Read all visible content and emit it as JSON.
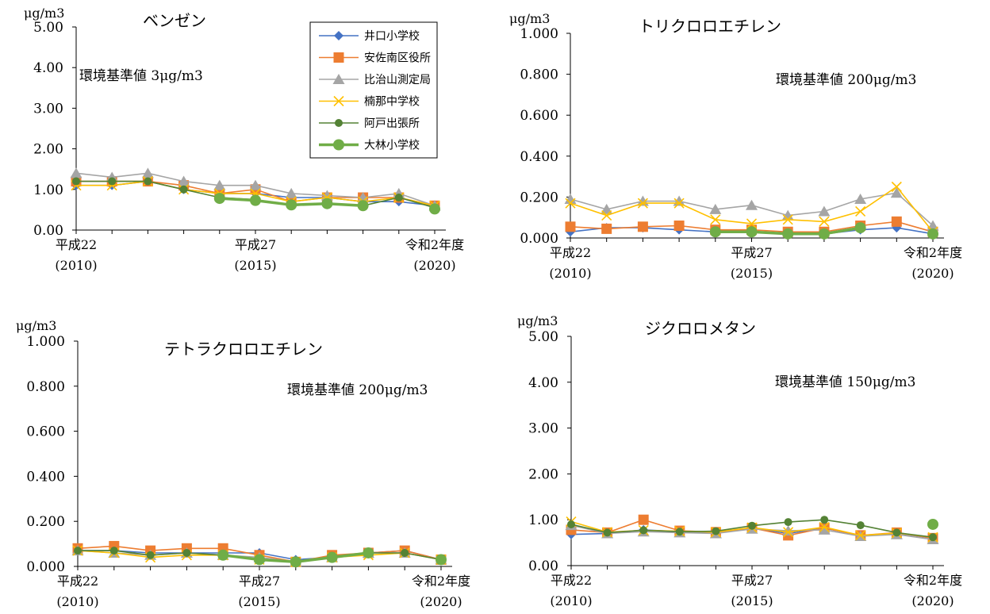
{
  "domain_note": "",
  "legend": {
    "entries": [
      {
        "name": "井口小学校",
        "color": "#4472c4",
        "marker": "diamond"
      },
      {
        "name": "安佐南区役所",
        "color": "#ed7d31",
        "marker": "square"
      },
      {
        "name": "比治山測定局",
        "color": "#a5a5a5",
        "marker": "triangle"
      },
      {
        "name": "楠那中学校",
        "color": "#ffc000",
        "marker": "x"
      },
      {
        "name": "阿戸出張所",
        "color": "#548235",
        "marker": "circle"
      },
      {
        "name": "大林小学校",
        "color": "#70ad47",
        "marker": "bigcircle"
      }
    ]
  },
  "chart_data": [
    {
      "type": "line",
      "title": "ベンゼン",
      "unit_label": "μg/m3",
      "note": "環境基準値 3μg/m3",
      "ylim": [
        0,
        5
      ],
      "yticks": [
        "0.00",
        "1.00",
        "2.00",
        "3.00",
        "4.00",
        "5.00"
      ],
      "x": [
        2010,
        2011,
        2012,
        2013,
        2014,
        2015,
        2016,
        2017,
        2018,
        2019,
        2020
      ],
      "xtick_labels": [
        {
          "x": 2010,
          "line1": "平成22",
          "line2": "(2010)"
        },
        {
          "x": 2015,
          "line1": "平成27",
          "line2": "(2015)"
        },
        {
          "x": 2020,
          "line1": "令和2年度",
          "line2": "(2020)"
        }
      ],
      "series": [
        {
          "name": "井口小学校",
          "values": [
            1.1,
            1.1,
            1.2,
            1.0,
            0.9,
            0.9,
            0.8,
            0.8,
            0.7,
            0.7,
            0.6
          ]
        },
        {
          "name": "安佐南区役所",
          "values": [
            1.2,
            1.2,
            1.2,
            1.1,
            0.9,
            1.0,
            0.7,
            0.8,
            0.8,
            0.8,
            0.6
          ]
        },
        {
          "name": "比治山測定局",
          "values": [
            1.4,
            1.3,
            1.4,
            1.2,
            1.1,
            1.1,
            0.9,
            0.85,
            0.8,
            0.9,
            0.6
          ]
        },
        {
          "name": "楠那中学校",
          "values": [
            1.1,
            1.1,
            1.2,
            1.0,
            0.9,
            0.9,
            0.7,
            0.8,
            0.7,
            0.8,
            0.6
          ]
        },
        {
          "name": "阿戸出張所",
          "values": [
            1.2,
            1.2,
            1.2,
            1.0,
            0.8,
            0.75,
            0.6,
            0.65,
            0.6,
            0.8,
            0.55
          ]
        },
        {
          "name": "大林小学校",
          "values": [
            null,
            null,
            null,
            null,
            0.78,
            0.73,
            0.62,
            0.65,
            0.6,
            null,
            0.52
          ]
        }
      ]
    },
    {
      "type": "line",
      "title": "トリクロロエチレン",
      "unit_label": "μg/m3",
      "note": "環境基準値 200μg/m3",
      "ylim": [
        0,
        1
      ],
      "yticks": [
        "0.000",
        "0.200",
        "0.400",
        "0.600",
        "0.800",
        "1.000"
      ],
      "x": [
        2010,
        2011,
        2012,
        2013,
        2014,
        2015,
        2016,
        2017,
        2018,
        2019,
        2020
      ],
      "xtick_labels": [
        {
          "x": 2010,
          "line1": "平成22",
          "line2": "(2010)"
        },
        {
          "x": 2015,
          "line1": "平成27",
          "line2": "(2015)"
        },
        {
          "x": 2020,
          "line1": "令和2年度",
          "line2": "(2020)"
        }
      ],
      "series": [
        {
          "name": "井口小学校",
          "values": [
            0.03,
            0.05,
            0.05,
            0.04,
            0.03,
            0.03,
            0.02,
            0.02,
            0.04,
            0.05,
            0.02
          ]
        },
        {
          "name": "安佐南区役所",
          "values": [
            0.055,
            0.045,
            0.055,
            0.06,
            0.04,
            0.04,
            0.03,
            0.03,
            0.06,
            0.08,
            0.03
          ]
        },
        {
          "name": "比治山測定局",
          "values": [
            0.19,
            0.14,
            0.18,
            0.18,
            0.14,
            0.16,
            0.11,
            0.13,
            0.19,
            0.22,
            0.06
          ]
        },
        {
          "name": "楠那中学校",
          "values": [
            0.17,
            0.11,
            0.17,
            0.17,
            0.09,
            0.07,
            0.09,
            0.08,
            0.13,
            0.25,
            0.03
          ]
        },
        {
          "name": "阿戸出張所",
          "values": [
            null,
            null,
            null,
            null,
            0.03,
            0.03,
            0.02,
            0.02,
            0.05,
            null,
            0.02
          ]
        },
        {
          "name": "大林小学校",
          "values": [
            null,
            null,
            null,
            null,
            0.03,
            0.03,
            0.02,
            0.02,
            0.05,
            null,
            0.02
          ]
        }
      ]
    },
    {
      "type": "line",
      "title": "テトラクロロエチレン",
      "unit_label": "μg/m3",
      "note": "環境基準値 200μg/m3",
      "ylim": [
        0,
        1
      ],
      "yticks": [
        "0.000",
        "0.200",
        "0.400",
        "0.600",
        "0.800",
        "1.000"
      ],
      "x": [
        2010,
        2011,
        2012,
        2013,
        2014,
        2015,
        2016,
        2017,
        2018,
        2019,
        2020
      ],
      "xtick_labels": [
        {
          "x": 2010,
          "line1": "平成22",
          "line2": "(2010)"
        },
        {
          "x": 2015,
          "line1": "平成27",
          "line2": "(2015)"
        },
        {
          "x": 2020,
          "line1": "令和2年度",
          "line2": "(2020)"
        }
      ],
      "series": [
        {
          "name": "井口小学校",
          "values": [
            0.07,
            0.07,
            0.06,
            0.06,
            0.06,
            0.06,
            0.03,
            0.04,
            0.06,
            0.07,
            0.03
          ]
        },
        {
          "name": "安佐南区役所",
          "values": [
            0.08,
            0.09,
            0.07,
            0.08,
            0.08,
            0.05,
            0.02,
            0.05,
            0.06,
            0.07,
            0.03
          ]
        },
        {
          "name": "比治山測定局",
          "values": [
            0.07,
            0.06,
            0.05,
            0.06,
            0.05,
            0.04,
            0.02,
            0.04,
            0.06,
            0.06,
            0.03
          ]
        },
        {
          "name": "楠那中学校",
          "values": [
            0.07,
            0.06,
            0.04,
            0.05,
            0.05,
            0.03,
            0.02,
            0.04,
            0.05,
            0.06,
            0.03
          ]
        },
        {
          "name": "阿戸出張所",
          "values": [
            0.07,
            0.07,
            0.05,
            0.06,
            0.05,
            0.03,
            0.02,
            0.04,
            0.06,
            0.06,
            0.03
          ]
        },
        {
          "name": "大林小学校",
          "values": [
            null,
            null,
            null,
            null,
            0.05,
            0.03,
            0.02,
            0.04,
            0.06,
            null,
            0.03
          ]
        }
      ]
    },
    {
      "type": "line",
      "title": "ジクロロメタン",
      "unit_label": "μg/m3",
      "note": "環境基準値 150μg/m3",
      "ylim": [
        0,
        5
      ],
      "yticks": [
        "0.00",
        "1.00",
        "2.00",
        "3.00",
        "4.00",
        "5.00"
      ],
      "x": [
        2010,
        2011,
        2012,
        2013,
        2014,
        2015,
        2016,
        2017,
        2018,
        2019,
        2020
      ],
      "xtick_labels": [
        {
          "x": 2010,
          "line1": "平成22",
          "line2": "(2010)"
        },
        {
          "x": 2015,
          "line1": "平成27",
          "line2": "(2015)"
        },
        {
          "x": 2020,
          "line1": "令和2年度",
          "line2": "(2020)"
        }
      ],
      "series": [
        {
          "name": "井口小学校",
          "values": [
            0.68,
            0.7,
            0.78,
            0.74,
            0.72,
            0.82,
            0.7,
            0.82,
            0.65,
            0.7,
            0.6
          ]
        },
        {
          "name": "安佐南区役所",
          "values": [
            0.78,
            0.72,
            1.0,
            0.76,
            0.73,
            0.82,
            0.66,
            0.82,
            0.66,
            0.72,
            0.6
          ]
        },
        {
          "name": "比治山測定局",
          "values": [
            0.88,
            0.7,
            0.74,
            0.72,
            0.7,
            0.8,
            0.76,
            0.78,
            0.64,
            0.68,
            0.57
          ]
        },
        {
          "name": "楠那中学校",
          "values": [
            0.96,
            0.73,
            0.77,
            0.75,
            0.73,
            0.83,
            0.73,
            0.84,
            0.66,
            0.71,
            0.62
          ]
        },
        {
          "name": "阿戸出張所",
          "values": [
            0.9,
            0.72,
            0.77,
            0.74,
            0.75,
            0.87,
            0.95,
            1.0,
            0.88,
            0.72,
            0.62
          ]
        },
        {
          "name": "大林小学校",
          "values": [
            null,
            null,
            null,
            null,
            null,
            null,
            null,
            null,
            null,
            null,
            0.9
          ]
        }
      ]
    }
  ]
}
